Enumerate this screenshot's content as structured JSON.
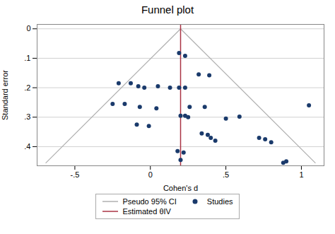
{
  "chart_data": {
    "type": "scatter",
    "title": "Funnel plot",
    "xlabel": "Cohen's d",
    "ylabel": "Standard error",
    "xlim": [
      -0.75,
      1.15
    ],
    "ylim": [
      0.465,
      -0.015
    ],
    "xticks": [
      {
        "value": -0.5,
        "label": "-.5"
      },
      0,
      {
        "value": 0.5,
        "label": ".5"
      },
      1
    ],
    "yticks": [
      0,
      {
        "value": 0.1,
        "label": ".1"
      },
      {
        "value": 0.2,
        "label": ".2"
      },
      {
        "value": 0.3,
        "label": ".3"
      },
      {
        "value": 0.4,
        "label": ".4"
      }
    ],
    "grid": "y",
    "legend": "bottom",
    "series": [
      {
        "name": "Pseudo 95% CI",
        "type": "line",
        "color": "#b0b0b0",
        "x": [
          -0.6918,
          0.2,
          1.0918
        ],
        "y": [
          0.455,
          0,
          0.455
        ]
      },
      {
        "name": "Studies",
        "type": "scatter",
        "marker": "circle",
        "color": "#1a3a6b",
        "x": [
          0.19,
          0.23,
          -0.13,
          -0.21,
          -0.08,
          0.05,
          -0.04,
          0.13,
          0.19,
          0.23,
          0.32,
          0.39,
          -0.25,
          -0.17,
          -0.07,
          0.04,
          0.26,
          0.36,
          0.2,
          0.23,
          0.25,
          0.5,
          0.59,
          -0.09,
          -0.01,
          0.34,
          0.38,
          0.4,
          0.43,
          0.72,
          0.76,
          0.8,
          0.18,
          0.22,
          0.9,
          1.05,
          0.2,
          0.88
        ],
        "y": [
          0.082,
          0.092,
          0.185,
          0.185,
          0.195,
          0.195,
          0.2,
          0.2,
          0.2,
          0.2,
          0.155,
          0.158,
          0.255,
          0.255,
          0.265,
          0.27,
          0.265,
          0.265,
          0.295,
          0.295,
          0.3,
          0.305,
          0.298,
          0.325,
          0.33,
          0.355,
          0.36,
          0.37,
          0.38,
          0.37,
          0.375,
          0.385,
          0.415,
          0.42,
          0.45,
          0.26,
          0.445,
          0.455
        ]
      },
      {
        "name": "Estimated θIV",
        "type": "rule",
        "color": "#aa3344",
        "x": 0.2
      }
    ]
  }
}
